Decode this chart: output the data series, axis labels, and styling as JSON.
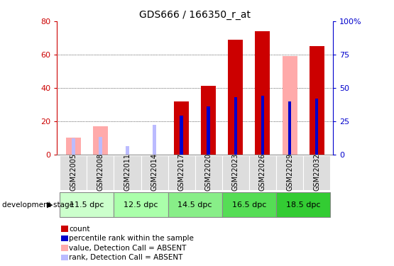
{
  "title": "GDS666 / 166350_r_at",
  "samples": [
    "GSM22005",
    "GSM22008",
    "GSM22011",
    "GSM22014",
    "GSM22017",
    "GSM22020",
    "GSM22023",
    "GSM22026",
    "GSM22029",
    "GSM22032"
  ],
  "count_values": [
    0,
    0,
    0,
    0,
    32,
    41,
    69,
    74,
    0,
    65
  ],
  "rank_values": [
    0,
    0,
    0,
    0,
    29,
    36,
    43,
    44,
    40,
    42
  ],
  "absent_value_values": [
    10,
    17,
    0,
    0,
    0,
    0,
    0,
    0,
    59,
    0
  ],
  "absent_rank_values": [
    12,
    13,
    6,
    22,
    0,
    0,
    0,
    0,
    0,
    0
  ],
  "dev_stages": [
    {
      "label": "11.5 dpc",
      "samples": [
        0,
        1
      ]
    },
    {
      "label": "12.5 dpc",
      "samples": [
        2,
        3
      ]
    },
    {
      "label": "14.5 dpc",
      "samples": [
        4,
        5
      ]
    },
    {
      "label": "16.5 dpc",
      "samples": [
        6,
        7
      ]
    },
    {
      "label": "18.5 dpc",
      "samples": [
        8,
        9
      ]
    }
  ],
  "stage_colors": [
    "#ccffcc",
    "#aaffaa",
    "#88ee88",
    "#55dd55",
    "#33cc33"
  ],
  "ylim_left": [
    0,
    80
  ],
  "ylim_right": [
    0,
    100
  ],
  "yticks_left": [
    0,
    20,
    40,
    60,
    80
  ],
  "yticks_right": [
    0,
    25,
    50,
    75,
    100
  ],
  "wide_bar_width": 0.55,
  "narrow_bar_width": 0.12,
  "colors": {
    "count": "#cc0000",
    "rank": "#0000cc",
    "absent_value": "#ffaaaa",
    "absent_rank": "#bbbbff",
    "axis_left": "#cc0000",
    "axis_right": "#0000cc",
    "sample_bg": "#dddddd",
    "stage_border": "#888888"
  },
  "legend_items": [
    {
      "label": "count",
      "color": "#cc0000"
    },
    {
      "label": "percentile rank within the sample",
      "color": "#0000cc"
    },
    {
      "label": "value, Detection Call = ABSENT",
      "color": "#ffaaaa"
    },
    {
      "label": "rank, Detection Call = ABSENT",
      "color": "#bbbbff"
    }
  ],
  "dev_stage_label": "development stage"
}
